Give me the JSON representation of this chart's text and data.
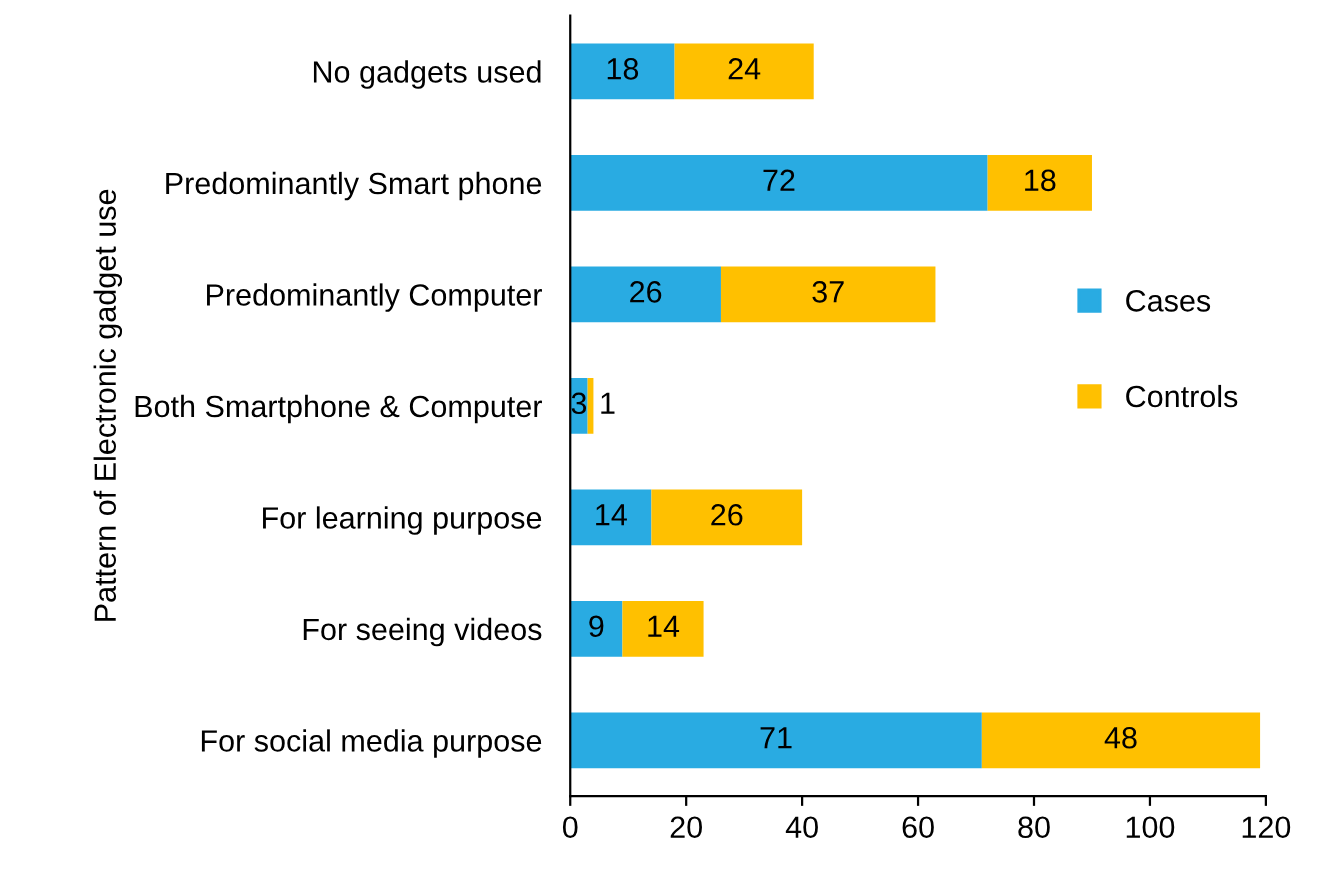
{
  "chart_data": {
    "type": "bar",
    "orientation": "horizontal",
    "stacked": true,
    "data_labels": true,
    "ylabel": "Pattern of Electronic gadget use",
    "categories": [
      "No gadgets used",
      "Predominantly Smart phone",
      "Predominantly Computer",
      "Both Smartphone & Computer",
      "For learning purpose",
      "For seeing videos",
      "For social media purpose"
    ],
    "series": [
      {
        "name": "Cases",
        "color": "#29abe2",
        "values": [
          18,
          72,
          26,
          3,
          14,
          9,
          71
        ]
      },
      {
        "name": "Controls",
        "color": "#ffc000",
        "values": [
          24,
          18,
          37,
          1,
          26,
          14,
          48
        ]
      }
    ],
    "xlim": [
      0,
      120
    ],
    "xticks": [
      0,
      20,
      40,
      60,
      80,
      100,
      120
    ],
    "grid": false,
    "legend": "right"
  }
}
